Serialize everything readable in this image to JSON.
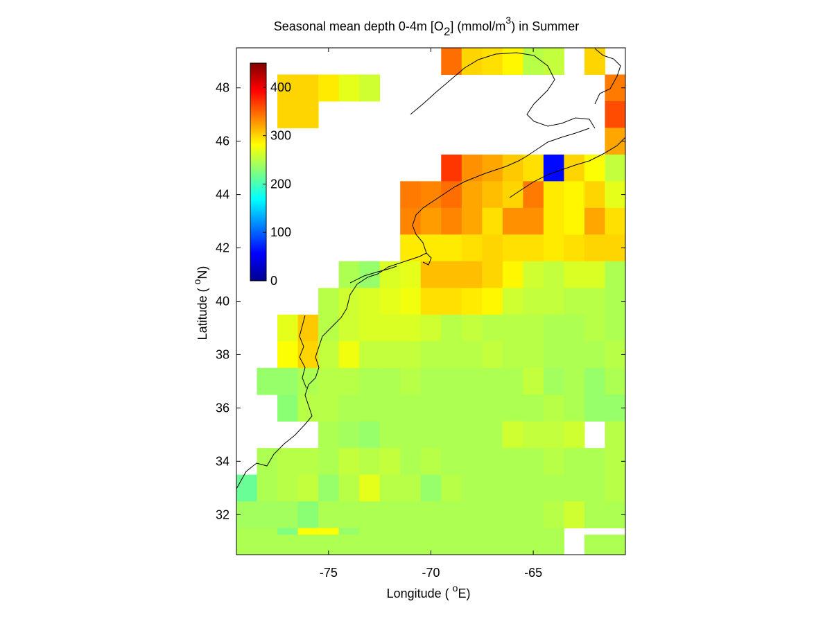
{
  "title": {
    "prefix": "Seasonal mean depth 0-4m [O",
    "sub": "2",
    "middle": "] (mmol/m",
    "sup": "3",
    "suffix": ") in  Summer"
  },
  "xlabel": {
    "prefix": "Longitude ( ",
    "sup": "o",
    "suffix": "E)"
  },
  "ylabel": {
    "prefix": "Latitude ( ",
    "sup": "o",
    "suffix": "N)"
  },
  "chart_data": {
    "type": "heatmap",
    "xlim": [
      -79.5,
      -60.5
    ],
    "ylim": [
      30.5,
      49.5
    ],
    "xticks": [
      -75,
      -70,
      -65
    ],
    "yticks": [
      32,
      34,
      36,
      38,
      40,
      42,
      44,
      46,
      48
    ],
    "colorbar": {
      "range": [
        0,
        450
      ],
      "ticks": [
        0,
        100,
        200,
        300,
        400
      ],
      "colormap": "jet"
    },
    "grid_resolution_deg": 1,
    "cells": [
      [
        -69,
        49,
        345
      ],
      [
        -68,
        49,
        300
      ],
      [
        -67,
        49,
        295
      ],
      [
        -66,
        49,
        285
      ],
      [
        -65,
        49,
        250
      ],
      [
        -64,
        49,
        255
      ],
      [
        -62,
        49,
        300
      ],
      [
        -77,
        48,
        300
      ],
      [
        -76,
        48,
        300
      ],
      [
        -75,
        48,
        290
      ],
      [
        -74,
        48,
        270
      ],
      [
        -73,
        48,
        260
      ],
      [
        -61,
        48,
        340
      ],
      [
        -77,
        47,
        300
      ],
      [
        -76,
        47,
        300
      ],
      [
        -61,
        47,
        360
      ],
      [
        -61,
        46,
        320
      ],
      [
        -69,
        45,
        370
      ],
      [
        -68,
        45,
        330
      ],
      [
        -67,
        45,
        320
      ],
      [
        -66,
        45,
        305
      ],
      [
        -65,
        45,
        295
      ],
      [
        -64,
        45,
        60
      ],
      [
        -63,
        45,
        300
      ],
      [
        -62,
        45,
        280
      ],
      [
        -61,
        45,
        255
      ],
      [
        -71,
        44,
        340
      ],
      [
        -70,
        44,
        335
      ],
      [
        -69,
        44,
        345
      ],
      [
        -68,
        44,
        320
      ],
      [
        -67,
        44,
        310
      ],
      [
        -66,
        44,
        300
      ],
      [
        -65,
        44,
        340
      ],
      [
        -64,
        44,
        290
      ],
      [
        -63,
        44,
        285
      ],
      [
        -62,
        44,
        300
      ],
      [
        -61,
        44,
        270
      ],
      [
        -71,
        43,
        335
      ],
      [
        -70,
        43,
        325
      ],
      [
        -69,
        43,
        335
      ],
      [
        -68,
        43,
        320
      ],
      [
        -67,
        43,
        295
      ],
      [
        -66,
        43,
        330
      ],
      [
        -65,
        43,
        330
      ],
      [
        -64,
        43,
        290
      ],
      [
        -63,
        43,
        285
      ],
      [
        -62,
        43,
        320
      ],
      [
        -61,
        43,
        295
      ],
      [
        -71,
        42,
        290
      ],
      [
        -70,
        42,
        290
      ],
      [
        -69,
        42,
        290
      ],
      [
        -68,
        42,
        295
      ],
      [
        -67,
        42,
        300
      ],
      [
        -66,
        42,
        295
      ],
      [
        -65,
        42,
        295
      ],
      [
        -64,
        42,
        290
      ],
      [
        -63,
        42,
        295
      ],
      [
        -62,
        42,
        300
      ],
      [
        -61,
        42,
        300
      ],
      [
        -74,
        41,
        245
      ],
      [
        -73,
        41,
        235
      ],
      [
        -72,
        41,
        265
      ],
      [
        -71,
        41,
        270
      ],
      [
        -70,
        41,
        310
      ],
      [
        -69,
        41,
        310
      ],
      [
        -68,
        41,
        310
      ],
      [
        -67,
        41,
        300
      ],
      [
        -66,
        41,
        285
      ],
      [
        -65,
        41,
        260
      ],
      [
        -64,
        41,
        255
      ],
      [
        -63,
        41,
        265
      ],
      [
        -62,
        41,
        265
      ],
      [
        -61,
        41,
        245
      ],
      [
        -75,
        40,
        250
      ],
      [
        -74,
        40,
        260
      ],
      [
        -73,
        40,
        265
      ],
      [
        -72,
        40,
        270
      ],
      [
        -71,
        40,
        275
      ],
      [
        -70,
        40,
        295
      ],
      [
        -69,
        40,
        295
      ],
      [
        -68,
        40,
        290
      ],
      [
        -67,
        40,
        285
      ],
      [
        -66,
        40,
        260
      ],
      [
        -65,
        40,
        255
      ],
      [
        -64,
        40,
        255
      ],
      [
        -63,
        40,
        250
      ],
      [
        -62,
        40,
        250
      ],
      [
        -61,
        40,
        245
      ],
      [
        -77,
        39,
        270
      ],
      [
        -76,
        39,
        305
      ],
      [
        -75,
        39,
        250
      ],
      [
        -74,
        39,
        260
      ],
      [
        -73,
        39,
        265
      ],
      [
        -72,
        39,
        265
      ],
      [
        -71,
        39,
        265
      ],
      [
        -70,
        39,
        260
      ],
      [
        -69,
        39,
        250
      ],
      [
        -68,
        39,
        255
      ],
      [
        -67,
        39,
        250
      ],
      [
        -66,
        39,
        250
      ],
      [
        -65,
        39,
        250
      ],
      [
        -64,
        39,
        245
      ],
      [
        -63,
        39,
        245
      ],
      [
        -62,
        39,
        250
      ],
      [
        -61,
        39,
        245
      ],
      [
        -77,
        38,
        280
      ],
      [
        -76,
        38,
        300
      ],
      [
        -75,
        38,
        255
      ],
      [
        -74,
        38,
        275
      ],
      [
        -73,
        38,
        255
      ],
      [
        -72,
        38,
        255
      ],
      [
        -71,
        38,
        255
      ],
      [
        -70,
        38,
        250
      ],
      [
        -69,
        38,
        250
      ],
      [
        -68,
        38,
        250
      ],
      [
        -67,
        38,
        255
      ],
      [
        -66,
        38,
        250
      ],
      [
        -65,
        38,
        250
      ],
      [
        -64,
        38,
        245
      ],
      [
        -63,
        38,
        245
      ],
      [
        -62,
        38,
        245
      ],
      [
        -61,
        38,
        250
      ],
      [
        -78,
        37,
        235
      ],
      [
        -77,
        37,
        235
      ],
      [
        -76,
        37,
        245
      ],
      [
        -75,
        37,
        250
      ],
      [
        -74,
        37,
        250
      ],
      [
        -73,
        37,
        245
      ],
      [
        -72,
        37,
        245
      ],
      [
        -71,
        37,
        250
      ],
      [
        -70,
        37,
        245
      ],
      [
        -69,
        37,
        245
      ],
      [
        -68,
        37,
        245
      ],
      [
        -67,
        37,
        245
      ],
      [
        -66,
        37,
        245
      ],
      [
        -65,
        37,
        255
      ],
      [
        -64,
        37,
        240
      ],
      [
        -63,
        37,
        245
      ],
      [
        -62,
        37,
        235
      ],
      [
        -61,
        37,
        245
      ],
      [
        -77,
        36,
        230
      ],
      [
        -76,
        36,
        250
      ],
      [
        -75,
        36,
        250
      ],
      [
        -74,
        36,
        245
      ],
      [
        -73,
        36,
        245
      ],
      [
        -72,
        36,
        245
      ],
      [
        -71,
        36,
        245
      ],
      [
        -70,
        36,
        245
      ],
      [
        -69,
        36,
        245
      ],
      [
        -68,
        36,
        245
      ],
      [
        -67,
        36,
        245
      ],
      [
        -66,
        36,
        245
      ],
      [
        -65,
        36,
        245
      ],
      [
        -64,
        36,
        250
      ],
      [
        -63,
        36,
        245
      ],
      [
        -62,
        36,
        235
      ],
      [
        -61,
        36,
        235
      ],
      [
        -75,
        35,
        245
      ],
      [
        -74,
        35,
        240
      ],
      [
        -73,
        35,
        235
      ],
      [
        -72,
        35,
        245
      ],
      [
        -71,
        35,
        245
      ],
      [
        -70,
        35,
        245
      ],
      [
        -69,
        35,
        245
      ],
      [
        -68,
        35,
        245
      ],
      [
        -67,
        35,
        245
      ],
      [
        -66,
        35,
        260
      ],
      [
        -65,
        35,
        255
      ],
      [
        -64,
        35,
        255
      ],
      [
        -63,
        35,
        260
      ],
      [
        -61,
        35,
        250
      ],
      [
        -78,
        34,
        245
      ],
      [
        -77,
        34,
        250
      ],
      [
        -76,
        34,
        250
      ],
      [
        -75,
        34,
        245
      ],
      [
        -74,
        34,
        255
      ],
      [
        -73,
        34,
        250
      ],
      [
        -72,
        34,
        255
      ],
      [
        -71,
        34,
        245
      ],
      [
        -70,
        34,
        250
      ],
      [
        -69,
        34,
        245
      ],
      [
        -68,
        34,
        245
      ],
      [
        -67,
        34,
        245
      ],
      [
        -66,
        34,
        245
      ],
      [
        -65,
        34,
        245
      ],
      [
        -64,
        34,
        250
      ],
      [
        -63,
        34,
        245
      ],
      [
        -62,
        34,
        245
      ],
      [
        -61,
        34,
        250
      ],
      [
        -79,
        33,
        215
      ],
      [
        -78,
        33,
        245
      ],
      [
        -77,
        33,
        250
      ],
      [
        -76,
        33,
        255
      ],
      [
        -75,
        33,
        235
      ],
      [
        -74,
        33,
        250
      ],
      [
        -73,
        33,
        270
      ],
      [
        -72,
        33,
        250
      ],
      [
        -71,
        33,
        250
      ],
      [
        -70,
        33,
        235
      ],
      [
        -69,
        33,
        250
      ],
      [
        -68,
        33,
        245
      ],
      [
        -67,
        33,
        245
      ],
      [
        -66,
        33,
        245
      ],
      [
        -65,
        33,
        245
      ],
      [
        -64,
        33,
        245
      ],
      [
        -63,
        33,
        245
      ],
      [
        -62,
        33,
        245
      ],
      [
        -61,
        33,
        250
      ],
      [
        -79,
        32,
        240
      ],
      [
        -78,
        32,
        240
      ],
      [
        -77,
        32,
        240
      ],
      [
        -76,
        32,
        230
      ],
      [
        -75,
        32,
        245
      ],
      [
        -74,
        32,
        245
      ],
      [
        -73,
        32,
        245
      ],
      [
        -72,
        32,
        245
      ],
      [
        -71,
        32,
        245
      ],
      [
        -70,
        32,
        245
      ],
      [
        -69,
        32,
        245
      ],
      [
        -68,
        32,
        245
      ],
      [
        -67,
        32,
        245
      ],
      [
        -66,
        32,
        245
      ],
      [
        -65,
        32,
        245
      ],
      [
        -64,
        32,
        250
      ],
      [
        -63,
        32,
        260
      ],
      [
        -62,
        32,
        245
      ],
      [
        -61,
        32,
        245
      ],
      [
        -79,
        31,
        245
      ],
      [
        -78,
        31,
        245
      ],
      [
        -77,
        31,
        225
      ],
      [
        -76,
        31,
        280
      ],
      [
        -75,
        31,
        280
      ],
      [
        -74,
        31,
        235
      ],
      [
        -73,
        31,
        245
      ],
      [
        -72,
        31,
        245
      ],
      [
        -71,
        31,
        245
      ],
      [
        -70,
        31,
        245
      ],
      [
        -69,
        31,
        245
      ],
      [
        -68,
        31,
        245
      ],
      [
        -67,
        31,
        245
      ],
      [
        -66,
        31,
        245
      ],
      [
        -65,
        31,
        245
      ],
      [
        -64,
        31,
        245
      ],
      [
        -79,
        30.75,
        245
      ],
      [
        -78,
        30.75,
        245
      ],
      [
        -77,
        30.75,
        245
      ],
      [
        -76,
        30.75,
        245
      ],
      [
        -75,
        30.75,
        245
      ],
      [
        -74,
        30.75,
        245
      ],
      [
        -73,
        30.75,
        245
      ],
      [
        -72,
        30.75,
        245
      ],
      [
        -71,
        30.75,
        245
      ],
      [
        -70,
        30.75,
        245
      ],
      [
        -69,
        30.75,
        245
      ],
      [
        -68,
        30.75,
        245
      ],
      [
        -67,
        30.75,
        245
      ],
      [
        -66,
        30.75,
        245
      ],
      [
        -65,
        30.75,
        245
      ],
      [
        -64,
        30.75,
        245
      ],
      [
        -62,
        30.75,
        245
      ],
      [
        -61,
        30.75,
        245
      ]
    ]
  }
}
